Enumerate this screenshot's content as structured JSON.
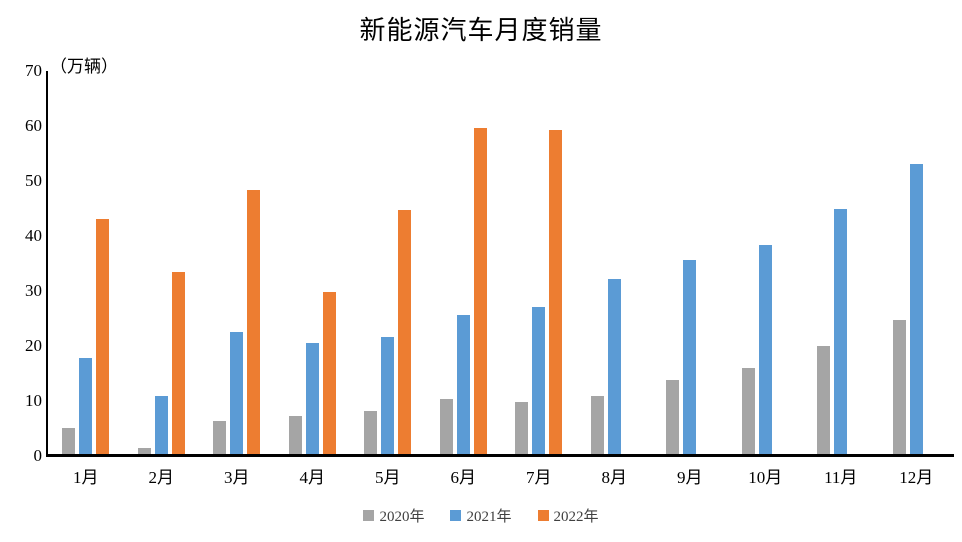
{
  "chart_data": {
    "type": "bar",
    "title": "新能源汽车月度销量",
    "unit_label": "（万辆）",
    "categories": [
      "1月",
      "2月",
      "3月",
      "4月",
      "5月",
      "6月",
      "7月",
      "8月",
      "9月",
      "10月",
      "11月",
      "12月"
    ],
    "series": [
      {
        "name": "2020年",
        "color": "#A5A5A5",
        "values": [
          5.1,
          1.5,
          6.3,
          7.2,
          8.2,
          10.4,
          9.8,
          10.9,
          13.9,
          16.0,
          20.0,
          24.8
        ]
      },
      {
        "name": "2021年",
        "color": "#5B9BD5",
        "values": [
          17.9,
          11.0,
          22.6,
          20.6,
          21.7,
          25.6,
          27.1,
          32.1,
          35.7,
          38.3,
          45.0,
          53.1
        ]
      },
      {
        "name": "2022年",
        "color": "#ED7D31",
        "values": [
          43.1,
          33.4,
          48.4,
          29.9,
          44.7,
          59.6,
          59.3,
          null,
          null,
          null,
          null,
          null
        ]
      }
    ],
    "ylim": [
      0,
      70
    ],
    "yticks": [
      0,
      10,
      20,
      30,
      40,
      50,
      60,
      70
    ],
    "xlabel": "",
    "ylabel": "",
    "grid": false,
    "legend_position": "bottom",
    "background_color": "#FFFFFF",
    "axis_color": "#000000"
  }
}
